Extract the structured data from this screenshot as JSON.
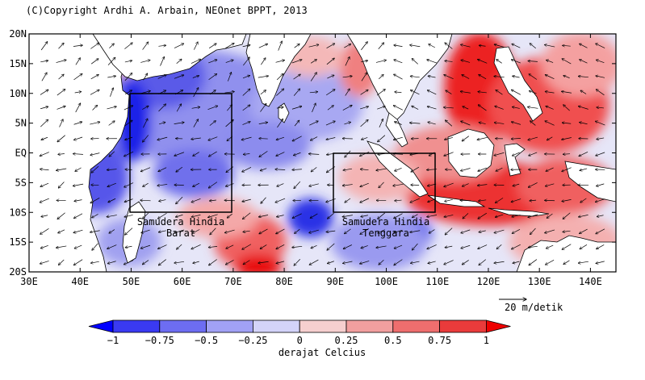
{
  "copyright": "(C)Copyright Ardhi A. Arbain, NEOnet BPPT, 2013",
  "map": {
    "lat_labels": [
      "20N",
      "15N",
      "10N",
      "5N",
      "EQ",
      "5S",
      "10S",
      "15S",
      "20S"
    ],
    "lon_labels": [
      "30E",
      "40E",
      "50E",
      "60E",
      "70E",
      "80E",
      "90E",
      "100E",
      "110E",
      "120E",
      "130E",
      "140E"
    ],
    "lat_range": [
      -20,
      20
    ],
    "lon_range": [
      30,
      145
    ],
    "variable": "sea surface temperature anomaly with surface wind vectors",
    "colors": {
      "strong_negative": "#0020e8",
      "negative": "#4a52f0",
      "weak_negative": "#a8a8f2",
      "near_zero": "#e8e8fa",
      "weak_positive": "#f4c8c8",
      "positive": "#ee8080",
      "strong_positive": "#ee1010",
      "land": "#ffffff"
    }
  },
  "regions": [
    {
      "line1": "Samudera Hindia",
      "line2": "Barat",
      "lon": [
        50,
        70
      ],
      "lat": [
        -10,
        10
      ]
    },
    {
      "line1": "Samudera Hindia",
      "line2": "Tenggara",
      "lon": [
        90,
        110
      ],
      "lat": [
        -10,
        0
      ]
    }
  ],
  "reference_vector": {
    "label": "20 m/detik"
  },
  "colorbar": {
    "ticks": [
      "−1",
      "−0.75",
      "−0.5",
      "−0.25",
      "0",
      "0.25",
      "0.5",
      "0.75",
      "1"
    ],
    "title": "derajat Celcius",
    "colors": [
      "#0000ff",
      "#3a3af2",
      "#6d6df2",
      "#a1a1f5",
      "#d3d3f9",
      "#f6cfcf",
      "#f29f9f",
      "#ee6e6e",
      "#ea3b3b",
      "#ee0000"
    ]
  }
}
